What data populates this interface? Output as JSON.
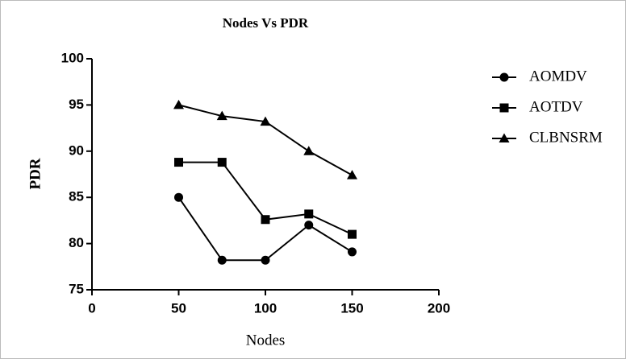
{
  "chart_data": {
    "type": "line",
    "title": "Nodes Vs PDR",
    "x_label": "Nodes",
    "y_label": "PDR",
    "x": [
      50,
      75,
      100,
      125,
      150
    ],
    "series": [
      {
        "name": "AOMDV",
        "color": "#000000",
        "marker": "circle",
        "values": [
          85,
          78.2,
          78.2,
          82,
          79.1
        ]
      },
      {
        "name": "AOTDV",
        "color": "#000000",
        "marker": "square",
        "values": [
          88.8,
          88.8,
          82.6,
          83.2,
          81
        ]
      },
      {
        "name": "CLBNSRM",
        "color": "#000000",
        "marker": "triangle",
        "values": [
          95,
          93.8,
          93.2,
          90,
          87.4
        ]
      }
    ],
    "xlim": [
      0,
      200
    ],
    "xticks": [
      0,
      50,
      100,
      150,
      200
    ],
    "ylim": [
      75,
      100
    ],
    "yticks": [
      75,
      80,
      85,
      90,
      95,
      100
    ],
    "grid": false,
    "legend": "right"
  }
}
